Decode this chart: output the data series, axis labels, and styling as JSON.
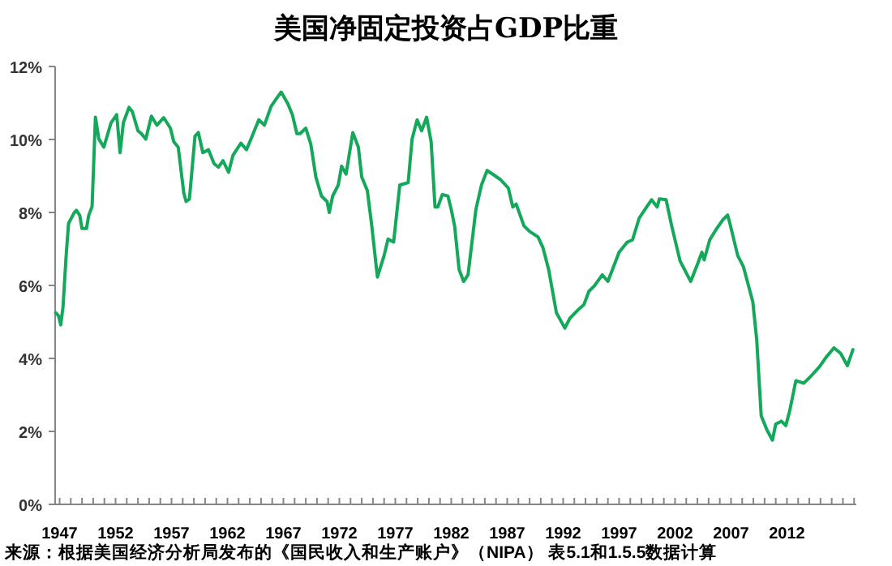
{
  "chart_data": {
    "type": "line",
    "title": "美国净固定投资占GDP比重",
    "annotations": [
      "来源：根据美国经济分析局发布的《国民收入和生产账户》（NIPA） 表5.1和1.5.5数据计算"
    ],
    "xlim": [
      1946.6,
      2018.2
    ],
    "ylim": [
      0,
      12
    ],
    "xticks": [
      1947,
      {
        "value": 1948,
        "label": null
      },
      {
        "value": 1949,
        "label": null
      },
      {
        "value": 1950,
        "label": null
      },
      {
        "value": 1951,
        "label": null
      },
      1952,
      {
        "value": 1953,
        "label": null
      },
      {
        "value": 1954,
        "label": null
      },
      {
        "value": 1955,
        "label": null
      },
      {
        "value": 1956,
        "label": null
      },
      1957,
      {
        "value": 1958,
        "label": null
      },
      {
        "value": 1959,
        "label": null
      },
      {
        "value": 1960,
        "label": null
      },
      {
        "value": 1961,
        "label": null
      },
      1962,
      {
        "value": 1963,
        "label": null
      },
      {
        "value": 1964,
        "label": null
      },
      {
        "value": 1965,
        "label": null
      },
      {
        "value": 1966,
        "label": null
      },
      1967,
      {
        "value": 1968,
        "label": null
      },
      {
        "value": 1969,
        "label": null
      },
      {
        "value": 1970,
        "label": null
      },
      {
        "value": 1971,
        "label": null
      },
      1972,
      {
        "value": 1973,
        "label": null
      },
      {
        "value": 1974,
        "label": null
      },
      {
        "value": 1975,
        "label": null
      },
      {
        "value": 1976,
        "label": null
      },
      1977,
      {
        "value": 1978,
        "label": null
      },
      {
        "value": 1979,
        "label": null
      },
      {
        "value": 1980,
        "label": null
      },
      {
        "value": 1981,
        "label": null
      },
      1982,
      {
        "value": 1983,
        "label": null
      },
      {
        "value": 1984,
        "label": null
      },
      {
        "value": 1985,
        "label": null
      },
      {
        "value": 1986,
        "label": null
      },
      1987,
      {
        "value": 1988,
        "label": null
      },
      {
        "value": 1989,
        "label": null
      },
      {
        "value": 1990,
        "label": null
      },
      {
        "value": 1991,
        "label": null
      },
      1992,
      {
        "value": 1993,
        "label": null
      },
      {
        "value": 1994,
        "label": null
      },
      {
        "value": 1995,
        "label": null
      },
      {
        "value": 1996,
        "label": null
      },
      1997,
      {
        "value": 1998,
        "label": null
      },
      {
        "value": 1999,
        "label": null
      },
      {
        "value": 2000,
        "label": null
      },
      {
        "value": 2001,
        "label": null
      },
      2002,
      {
        "value": 2003,
        "label": null
      },
      {
        "value": 2004,
        "label": null
      },
      {
        "value": 2005,
        "label": null
      },
      {
        "value": 2006,
        "label": null
      },
      2007,
      {
        "value": 2008,
        "label": null
      },
      {
        "value": 2009,
        "label": null
      },
      {
        "value": 2010,
        "label": null
      },
      {
        "value": 2011,
        "label": null
      },
      2012,
      {
        "value": 2013,
        "label": null
      },
      {
        "value": 2014,
        "label": null
      },
      {
        "value": 2015,
        "label": null
      },
      {
        "value": 2016,
        "label": null
      },
      {
        "value": 2017,
        "label": null
      },
      {
        "value": 2018,
        "label": null
      }
    ],
    "yticks": [
      {
        "value": 0,
        "label": "0%"
      },
      {
        "value": 2,
        "label": "2%"
      },
      {
        "value": 4,
        "label": "4%"
      },
      {
        "value": 6,
        "label": "6%"
      },
      {
        "value": 8,
        "label": "8%"
      },
      {
        "value": 10,
        "label": "10%"
      },
      {
        "value": 12,
        "label": "12%"
      }
    ],
    "color": "#13a85a",
    "x": [
      1946.65,
      1946.9,
      1947.1,
      1947.3,
      1947.6,
      1947.8,
      1948.3,
      1948.5,
      1948.8,
      1949.0,
      1949.4,
      1949.6,
      1949.9,
      1950.2,
      1950.5,
      1950.95,
      1951.6,
      1952.1,
      1952.4,
      1952.7,
      1953.2,
      1953.5,
      1954.0,
      1954.3,
      1954.7,
      1955.2,
      1955.7,
      1956.3,
      1956.9,
      1957.2,
      1957.6,
      1958.1,
      1958.3,
      1958.6,
      1959.1,
      1959.4,
      1959.8,
      1960.3,
      1960.8,
      1961.2,
      1961.6,
      1962.1,
      1962.5,
      1963.2,
      1963.7,
      1964.1,
      1964.8,
      1965.3,
      1965.9,
      1966.4,
      1966.8,
      1967.4,
      1967.8,
      1968.2,
      1968.5,
      1969.0,
      1969.45,
      1969.9,
      1970.4,
      1970.9,
      1971.1,
      1971.4,
      1971.9,
      1972.2,
      1972.6,
      1973.2,
      1973.7,
      1974.0,
      1974.5,
      1974.9,
      1975.4,
      1976.0,
      1976.35,
      1976.85,
      1977.4,
      1978.15,
      1978.5,
      1978.95,
      1979.35,
      1979.8,
      1980.2,
      1980.55,
      1980.8,
      1981.2,
      1981.7,
      1982.0,
      1982.3,
      1982.7,
      1983.1,
      1983.5,
      1984.2,
      1984.7,
      1985.2,
      1985.7,
      1986.4,
      1987.1,
      1987.5,
      1987.8,
      1988.5,
      1989.0,
      1989.75,
      1990.2,
      1990.7,
      1991.4,
      1992.15,
      1992.6,
      1993.3,
      1993.85,
      1994.3,
      1994.8,
      1995.5,
      1996.0,
      1997.0,
      1997.7,
      1998.2,
      1998.8,
      1999.9,
      2000.4,
      2000.6,
      2001.2,
      2001.7,
      2002.45,
      2003.4,
      2004.0,
      2004.4,
      2004.6,
      2005.1,
      2005.7,
      2006.3,
      2006.7,
      2006.9,
      2007.6,
      2008.1,
      2008.95,
      2009.3,
      2009.7,
      2010.2,
      2010.7,
      2011.0,
      2011.5,
      2011.9,
      2012.25,
      2012.8,
      2013.5,
      2014.1,
      2014.9,
      2015.5,
      2016.2,
      2016.8,
      2017.4,
      2017.9
    ],
    "values": [
      5.25,
      5.17,
      4.92,
      5.4,
      6.89,
      7.7,
      7.99,
      8.06,
      7.92,
      7.56,
      7.56,
      7.92,
      8.16,
      10.61,
      10.02,
      9.79,
      10.46,
      10.68,
      9.64,
      10.46,
      10.88,
      10.76,
      10.24,
      10.16,
      10.01,
      10.64,
      10.39,
      10.6,
      10.31,
      9.94,
      9.79,
      8.53,
      8.3,
      8.37,
      10.09,
      10.19,
      9.64,
      9.72,
      9.34,
      9.24,
      9.42,
      9.1,
      9.57,
      9.9,
      9.72,
      10.01,
      10.54,
      10.39,
      10.91,
      11.13,
      11.3,
      10.98,
      10.68,
      10.16,
      10.16,
      10.31,
      9.87,
      8.97,
      8.45,
      8.3,
      8.0,
      8.45,
      8.75,
      9.27,
      9.05,
      10.19,
      9.79,
      8.97,
      8.6,
      7.63,
      6.23,
      6.82,
      7.27,
      7.19,
      8.75,
      8.82,
      10.01,
      10.54,
      10.24,
      10.61,
      9.94,
      8.15,
      8.15,
      8.49,
      8.45,
      8.08,
      7.63,
      6.44,
      6.11,
      6.29,
      8.08,
      8.75,
      9.15,
      9.05,
      8.9,
      8.67,
      8.15,
      8.23,
      7.63,
      7.48,
      7.33,
      7.03,
      6.44,
      5.25,
      4.83,
      5.1,
      5.32,
      5.47,
      5.84,
      5.99,
      6.29,
      6.11,
      6.91,
      7.18,
      7.25,
      7.85,
      8.35,
      8.15,
      8.37,
      8.35,
      7.63,
      6.67,
      6.11,
      6.58,
      6.91,
      6.7,
      7.25,
      7.55,
      7.81,
      7.93,
      7.7,
      6.82,
      6.52,
      5.55,
      4.51,
      2.43,
      2.05,
      1.76,
      2.2,
      2.28,
      2.16,
      2.57,
      3.39,
      3.32,
      3.5,
      3.77,
      4.03,
      4.29,
      4.14,
      3.8,
      4.24
    ]
  }
}
